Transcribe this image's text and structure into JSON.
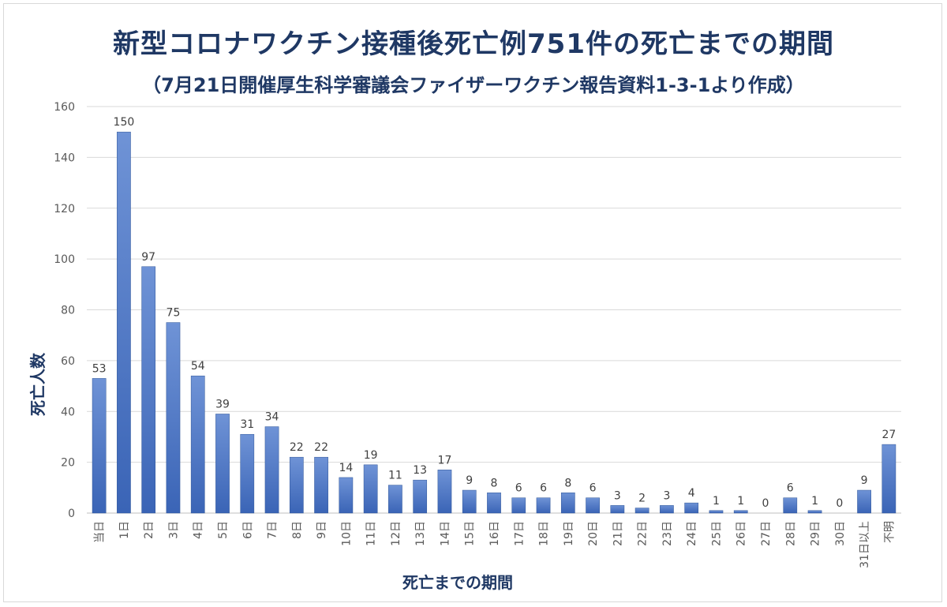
{
  "chart_data": {
    "type": "bar",
    "title": "新型コロナワクチン接種後死亡例751件の死亡までの期間",
    "subtitle": "（7月21日開催厚生科学審議会ファイザーワクチン報告資料1-3-1より作成）",
    "xlabel": "死亡までの期間",
    "ylabel": "死亡人数",
    "ylim": [
      0,
      160
    ],
    "yticks": [
      0,
      20,
      40,
      60,
      80,
      100,
      120,
      140,
      160
    ],
    "grid": true,
    "legend": "none",
    "bar_color": "#4472c4",
    "categories": [
      "当日",
      "1日",
      "2日",
      "3日",
      "4日",
      "5日",
      "6日",
      "7日",
      "8日",
      "9日",
      "10日",
      "11日",
      "12日",
      "13日",
      "14日",
      "15日",
      "16日",
      "17日",
      "18日",
      "19日",
      "20日",
      "21日",
      "22日",
      "23日",
      "24日",
      "25日",
      "26日",
      "27日",
      "28日",
      "29日",
      "30日",
      "31日以上",
      "不明"
    ],
    "values": [
      53,
      150,
      97,
      75,
      54,
      39,
      31,
      34,
      22,
      22,
      14,
      19,
      11,
      13,
      17,
      9,
      8,
      6,
      6,
      8,
      6,
      3,
      2,
      3,
      4,
      1,
      1,
      0,
      6,
      1,
      0,
      9,
      27
    ]
  }
}
